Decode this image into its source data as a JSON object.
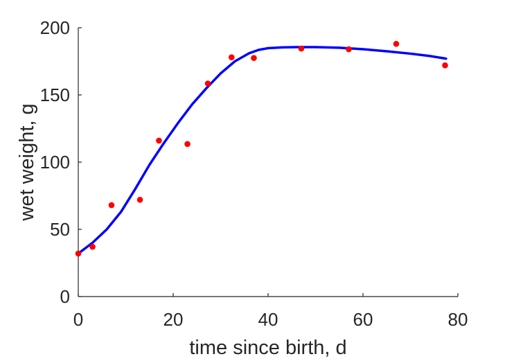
{
  "chart_data": {
    "type": "scatter",
    "title": "",
    "xlabel": "time since birth, d",
    "ylabel": "wet weight, g",
    "xlim": [
      0,
      80
    ],
    "ylim": [
      0,
      200
    ],
    "xticks": [
      0,
      20,
      40,
      60,
      80
    ],
    "yticks": [
      0,
      50,
      100,
      150,
      200
    ],
    "grid": false,
    "legend": "none",
    "series": [
      {
        "kind": "points",
        "color": "#ff0000",
        "x": [
          0,
          3,
          7,
          13,
          17,
          23,
          27.3,
          32.3,
          37,
          47,
          57,
          67,
          77.3
        ],
        "y": [
          32,
          37,
          68,
          72,
          116,
          113.5,
          158.5,
          178,
          177.5,
          184.5,
          184,
          188,
          172
        ]
      },
      {
        "kind": "line",
        "color": "#0000ff",
        "x": [
          0,
          3,
          6,
          9,
          12,
          15,
          18,
          21,
          24,
          27,
          30,
          33,
          36,
          38,
          40,
          43,
          46,
          50,
          55,
          60,
          65,
          70,
          74,
          77.5
        ],
        "y": [
          32,
          40,
          50,
          63,
          80,
          98,
          114,
          129,
          143,
          155,
          166,
          175,
          181,
          183.5,
          184.8,
          185.4,
          185.6,
          185.6,
          185.1,
          184,
          182.5,
          180.7,
          179,
          177
        ]
      }
    ]
  }
}
